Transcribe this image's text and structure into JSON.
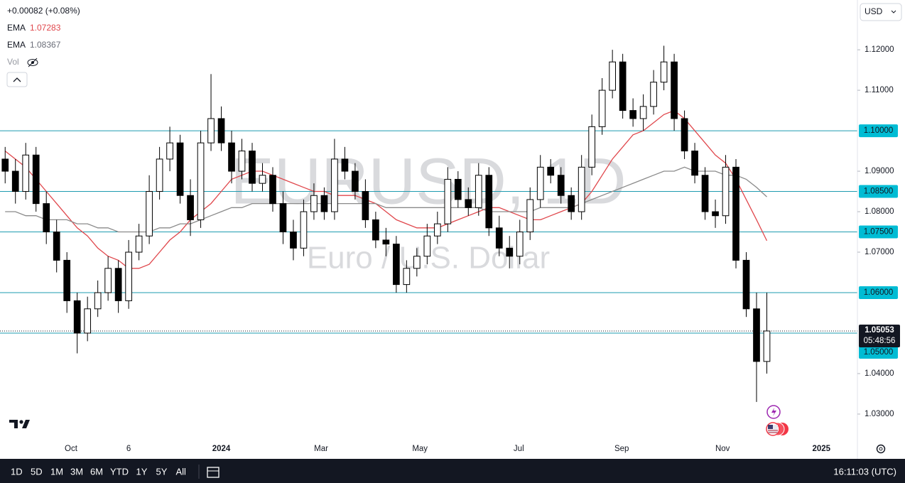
{
  "chart_data": {
    "type": "candlestick",
    "title": "EURUSD, 1D",
    "subtitle": "Euro / U.S. Dollar",
    "change": "+0.00082 (+0.08%)",
    "currency": "USD",
    "volume_label": "Vol",
    "categories": [
      null,
      null,
      null,
      null,
      null,
      null,
      null,
      null,
      null,
      null,
      null,
      null,
      null,
      null,
      null,
      null,
      null,
      null,
      null,
      null,
      null,
      null,
      null,
      null,
      null,
      null,
      null,
      null,
      null,
      null,
      null,
      null,
      null,
      null,
      null,
      null,
      null,
      null,
      null,
      null,
      null,
      null,
      null,
      null,
      null,
      null,
      null,
      null,
      null,
      null,
      null,
      null,
      null,
      null,
      null,
      null,
      null,
      null,
      null,
      null,
      null,
      null,
      null,
      null,
      null,
      null,
      null,
      null,
      null,
      null,
      null,
      null,
      null,
      null,
      null
    ],
    "open": [
      1.093,
      1.09,
      1.085,
      1.094,
      1.082,
      1.075,
      1.068,
      1.058,
      1.05,
      1.056,
      1.06,
      1.066,
      1.058,
      1.07,
      1.074,
      1.085,
      1.093,
      1.097,
      1.084,
      1.078,
      1.097,
      1.103,
      1.097,
      1.09,
      1.095,
      1.087,
      1.089,
      1.082,
      1.075,
      1.071,
      1.08,
      1.084,
      1.08,
      1.093,
      1.09,
      1.085,
      1.078,
      1.073,
      1.072,
      1.062,
      1.066,
      1.069,
      1.074,
      1.077,
      1.088,
      1.083,
      1.081,
      1.089,
      1.076,
      1.071,
      1.069,
      1.075,
      1.083,
      1.091,
      1.089,
      1.084,
      1.08,
      1.091,
      1.101,
      1.11,
      1.117,
      1.105,
      1.103,
      1.106,
      1.112,
      1.117,
      1.103,
      1.095,
      1.089,
      1.08,
      1.079,
      1.091,
      1.068,
      1.056,
      1.043
    ],
    "high": [
      1.096,
      1.093,
      1.097,
      1.096,
      1.085,
      1.078,
      1.07,
      1.06,
      1.059,
      1.063,
      1.069,
      1.068,
      1.073,
      1.077,
      1.089,
      1.096,
      1.101,
      1.099,
      1.088,
      1.1,
      1.114,
      1.106,
      1.1,
      1.098,
      1.097,
      1.092,
      1.091,
      1.085,
      1.078,
      1.083,
      1.087,
      1.086,
      1.098,
      1.096,
      1.092,
      1.088,
      1.08,
      1.076,
      1.074,
      1.068,
      1.071,
      1.077,
      1.08,
      1.091,
      1.09,
      1.086,
      1.092,
      1.091,
      1.079,
      1.074,
      1.078,
      1.086,
      1.094,
      1.093,
      1.091,
      1.086,
      1.094,
      1.104,
      1.113,
      1.12,
      1.119,
      1.108,
      1.109,
      1.115,
      1.121,
      1.119,
      1.105,
      1.097,
      1.091,
      1.083,
      1.094,
      1.093,
      1.07,
      1.06,
      1.06
    ],
    "low": [
      1.087,
      1.082,
      1.083,
      1.08,
      1.072,
      1.065,
      1.055,
      1.045,
      1.048,
      1.054,
      1.058,
      1.055,
      1.056,
      1.068,
      1.072,
      1.083,
      1.09,
      1.082,
      1.074,
      1.076,
      1.095,
      1.095,
      1.087,
      1.088,
      1.085,
      1.085,
      1.08,
      1.072,
      1.068,
      1.069,
      1.078,
      1.078,
      1.078,
      1.088,
      1.083,
      1.076,
      1.071,
      1.069,
      1.06,
      1.06,
      1.064,
      1.067,
      1.072,
      1.075,
      1.081,
      1.079,
      1.079,
      1.074,
      1.069,
      1.066,
      1.067,
      1.073,
      1.081,
      1.087,
      1.082,
      1.078,
      1.078,
      1.089,
      1.099,
      1.108,
      1.103,
      1.101,
      1.1,
      1.104,
      1.11,
      1.1,
      1.093,
      1.087,
      1.078,
      1.076,
      1.077,
      1.066,
      1.054,
      1.033,
      1.04
    ],
    "close": [
      1.09,
      1.085,
      1.094,
      1.082,
      1.075,
      1.068,
      1.058,
      1.05,
      1.056,
      1.06,
      1.066,
      1.058,
      1.07,
      1.074,
      1.085,
      1.093,
      1.097,
      1.084,
      1.078,
      1.097,
      1.103,
      1.097,
      1.09,
      1.095,
      1.087,
      1.089,
      1.082,
      1.075,
      1.071,
      1.08,
      1.084,
      1.08,
      1.093,
      1.09,
      1.085,
      1.078,
      1.073,
      1.072,
      1.062,
      1.066,
      1.069,
      1.074,
      1.077,
      1.088,
      1.083,
      1.081,
      1.089,
      1.076,
      1.071,
      1.069,
      1.075,
      1.083,
      1.091,
      1.089,
      1.084,
      1.08,
      1.091,
      1.101,
      1.11,
      1.117,
      1.105,
      1.103,
      1.106,
      1.112,
      1.117,
      1.103,
      1.095,
      1.089,
      1.08,
      1.079,
      1.091,
      1.068,
      1.056,
      1.043,
      1.05053
    ],
    "color_up": "#ffffff",
    "color_down": "#000000",
    "series": [
      {
        "name": "EMA",
        "color": "#e0474c",
        "values": [
          1.095,
          1.093,
          1.091,
          1.088,
          1.085,
          1.082,
          1.079,
          1.076,
          1.074,
          1.071,
          1.069,
          1.068,
          1.066,
          1.066,
          1.067,
          1.07,
          1.073,
          1.075,
          1.078,
          1.08,
          1.082,
          1.085,
          1.088,
          1.089,
          1.09,
          1.09,
          1.089,
          1.088,
          1.087,
          1.086,
          1.085,
          1.085,
          1.084,
          1.084,
          1.084,
          1.083,
          1.082,
          1.08,
          1.078,
          1.077,
          1.076,
          1.076,
          1.076,
          1.077,
          1.078,
          1.079,
          1.08,
          1.081,
          1.081,
          1.08,
          1.079,
          1.078,
          1.078,
          1.079,
          1.08,
          1.081,
          1.082,
          1.085,
          1.089,
          1.093,
          1.096,
          1.099,
          1.1,
          1.102,
          1.104,
          1.105,
          1.103,
          1.1,
          1.097,
          1.094,
          1.092,
          1.088,
          1.083,
          1.078,
          1.07283
        ]
      },
      {
        "name": "EMA",
        "color": "#8a8a8a",
        "values": [
          1.08,
          1.08,
          1.079,
          1.079,
          1.078,
          1.078,
          1.078,
          1.077,
          1.077,
          1.076,
          1.076,
          1.075,
          1.075,
          1.075,
          1.075,
          1.076,
          1.076,
          1.077,
          1.077,
          1.078,
          1.079,
          1.08,
          1.081,
          1.081,
          1.082,
          1.082,
          1.082,
          1.082,
          1.082,
          1.082,
          1.082,
          1.082,
          1.082,
          1.082,
          1.082,
          1.082,
          1.082,
          1.081,
          1.081,
          1.081,
          1.081,
          1.081,
          1.081,
          1.081,
          1.081,
          1.081,
          1.081,
          1.08,
          1.08,
          1.08,
          1.08,
          1.08,
          1.081,
          1.081,
          1.081,
          1.081,
          1.082,
          1.083,
          1.084,
          1.085,
          1.086,
          1.087,
          1.088,
          1.089,
          1.09,
          1.09,
          1.091,
          1.09,
          1.09,
          1.09,
          1.089,
          1.089,
          1.088,
          1.086,
          1.08367
        ]
      }
    ],
    "ylim": [
      1.0235,
      1.1323
    ],
    "yticks": [
      {
        "value": 1.12,
        "label": "1.12000"
      },
      {
        "value": 1.11,
        "label": "1.11000"
      },
      {
        "value": 1.09,
        "label": "1.09000"
      },
      {
        "value": 1.08,
        "label": "1.08000"
      },
      {
        "value": 1.07,
        "label": "1.07000"
      },
      {
        "value": 1.04,
        "label": "1.04000"
      },
      {
        "value": 1.03,
        "label": "1.03000"
      }
    ],
    "xlim": [
      -0.5,
      82.8
    ],
    "xticks": [
      {
        "value": 6.4,
        "label": "Oct"
      },
      {
        "value": 12.0,
        "label": "6"
      },
      {
        "value": 21.0,
        "label": "2024"
      },
      {
        "value": 30.7,
        "label": "Mar"
      },
      {
        "value": 40.3,
        "label": "May"
      },
      {
        "value": 49.9,
        "label": "Jul"
      },
      {
        "value": 59.9,
        "label": "Sep"
      },
      {
        "value": 69.7,
        "label": "Nov"
      },
      {
        "value": 79.3,
        "label": "2025"
      }
    ],
    "levels": [
      {
        "value": 1.1,
        "label": "1.10000"
      },
      {
        "value": 1.085,
        "label": "1.08500"
      },
      {
        "value": 1.075,
        "label": "1.07500"
      },
      {
        "value": 1.06,
        "label": "1.06000"
      },
      {
        "value": 1.05,
        "label": "1.05000"
      }
    ],
    "last_price": {
      "value": 1.05053,
      "label": "1.05053"
    },
    "countdown": "05:48:56"
  },
  "toolbar": {
    "ranges": [
      "1D",
      "5D",
      "1M",
      "3M",
      "6M",
      "YTD",
      "1Y",
      "5Y",
      "All"
    ],
    "clock": "16:11:03 (UTC)"
  }
}
